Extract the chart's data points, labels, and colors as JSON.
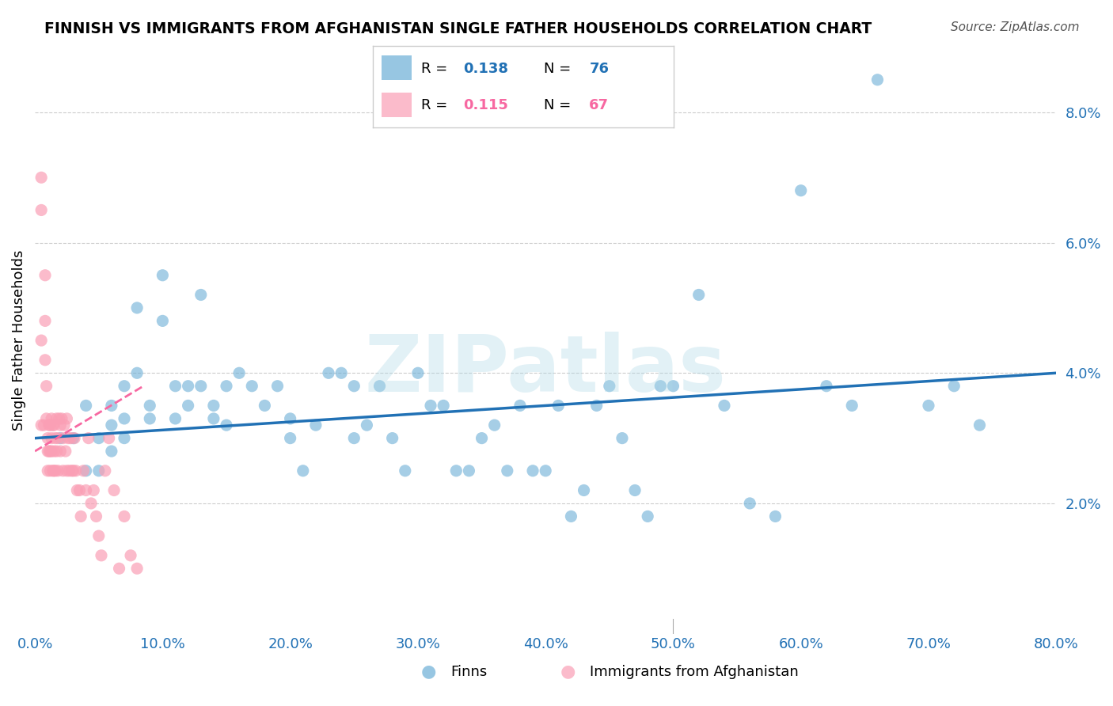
{
  "title": "FINNISH VS IMMIGRANTS FROM AFGHANISTAN SINGLE FATHER HOUSEHOLDS CORRELATION CHART",
  "source": "Source: ZipAtlas.com",
  "ylabel": "Single Father Households",
  "ytick_values": [
    0.0,
    0.02,
    0.04,
    0.06,
    0.08
  ],
  "xlim": [
    0.0,
    0.8
  ],
  "ylim": [
    0.0,
    0.09
  ],
  "legend_label1": "Finns",
  "legend_label2": "Immigrants from Afghanistan",
  "blue_color": "#6baed6",
  "pink_color": "#fa9fb5",
  "blue_line_color": "#2171b5",
  "pink_line_color": "#f768a1",
  "watermark": "ZIPatlas",
  "finn_scatter_x": [
    0.02,
    0.03,
    0.04,
    0.04,
    0.05,
    0.05,
    0.06,
    0.06,
    0.06,
    0.07,
    0.07,
    0.07,
    0.08,
    0.08,
    0.09,
    0.09,
    0.1,
    0.1,
    0.11,
    0.11,
    0.12,
    0.12,
    0.13,
    0.13,
    0.14,
    0.14,
    0.15,
    0.15,
    0.16,
    0.17,
    0.18,
    0.19,
    0.2,
    0.2,
    0.21,
    0.22,
    0.23,
    0.24,
    0.25,
    0.25,
    0.26,
    0.27,
    0.28,
    0.29,
    0.3,
    0.31,
    0.32,
    0.33,
    0.34,
    0.35,
    0.36,
    0.37,
    0.38,
    0.39,
    0.4,
    0.41,
    0.42,
    0.43,
    0.44,
    0.45,
    0.46,
    0.47,
    0.48,
    0.49,
    0.5,
    0.52,
    0.54,
    0.56,
    0.58,
    0.6,
    0.62,
    0.64,
    0.66,
    0.7,
    0.72,
    0.74
  ],
  "finn_scatter_y": [
    0.03,
    0.03,
    0.035,
    0.025,
    0.03,
    0.025,
    0.035,
    0.032,
    0.028,
    0.033,
    0.038,
    0.03,
    0.05,
    0.04,
    0.035,
    0.033,
    0.055,
    0.048,
    0.038,
    0.033,
    0.038,
    0.035,
    0.052,
    0.038,
    0.035,
    0.033,
    0.038,
    0.032,
    0.04,
    0.038,
    0.035,
    0.038,
    0.033,
    0.03,
    0.025,
    0.032,
    0.04,
    0.04,
    0.038,
    0.03,
    0.032,
    0.038,
    0.03,
    0.025,
    0.04,
    0.035,
    0.035,
    0.025,
    0.025,
    0.03,
    0.032,
    0.025,
    0.035,
    0.025,
    0.025,
    0.035,
    0.018,
    0.022,
    0.035,
    0.038,
    0.03,
    0.022,
    0.018,
    0.038,
    0.038,
    0.052,
    0.035,
    0.02,
    0.018,
    0.068,
    0.038,
    0.035,
    0.085,
    0.035,
    0.038,
    0.032
  ],
  "afghan_scatter_x": [
    0.005,
    0.005,
    0.005,
    0.005,
    0.007,
    0.008,
    0.008,
    0.008,
    0.009,
    0.009,
    0.01,
    0.01,
    0.01,
    0.011,
    0.011,
    0.012,
    0.012,
    0.012,
    0.013,
    0.013,
    0.013,
    0.014,
    0.014,
    0.015,
    0.015,
    0.015,
    0.016,
    0.016,
    0.017,
    0.017,
    0.018,
    0.018,
    0.019,
    0.02,
    0.02,
    0.021,
    0.022,
    0.022,
    0.023,
    0.024,
    0.025,
    0.025,
    0.026,
    0.027,
    0.028,
    0.029,
    0.03,
    0.031,
    0.032,
    0.033,
    0.035,
    0.036,
    0.038,
    0.04,
    0.042,
    0.044,
    0.046,
    0.048,
    0.05,
    0.052,
    0.055,
    0.058,
    0.062,
    0.066,
    0.07,
    0.075,
    0.08
  ],
  "afghan_scatter_y": [
    0.07,
    0.065,
    0.045,
    0.032,
    0.032,
    0.055,
    0.048,
    0.042,
    0.038,
    0.033,
    0.03,
    0.028,
    0.025,
    0.032,
    0.028,
    0.032,
    0.028,
    0.025,
    0.033,
    0.03,
    0.028,
    0.032,
    0.025,
    0.032,
    0.028,
    0.025,
    0.03,
    0.025,
    0.033,
    0.028,
    0.03,
    0.025,
    0.033,
    0.032,
    0.028,
    0.033,
    0.03,
    0.025,
    0.032,
    0.028,
    0.033,
    0.025,
    0.03,
    0.025,
    0.03,
    0.025,
    0.025,
    0.03,
    0.025,
    0.022,
    0.022,
    0.018,
    0.025,
    0.022,
    0.03,
    0.02,
    0.022,
    0.018,
    0.015,
    0.012,
    0.025,
    0.03,
    0.022,
    0.01,
    0.018,
    0.012,
    0.01
  ],
  "blue_trend_x": [
    0.0,
    0.8
  ],
  "blue_trend_y": [
    0.03,
    0.04
  ],
  "pink_trend_x": [
    0.0,
    0.085
  ],
  "pink_trend_y": [
    0.028,
    0.038
  ]
}
